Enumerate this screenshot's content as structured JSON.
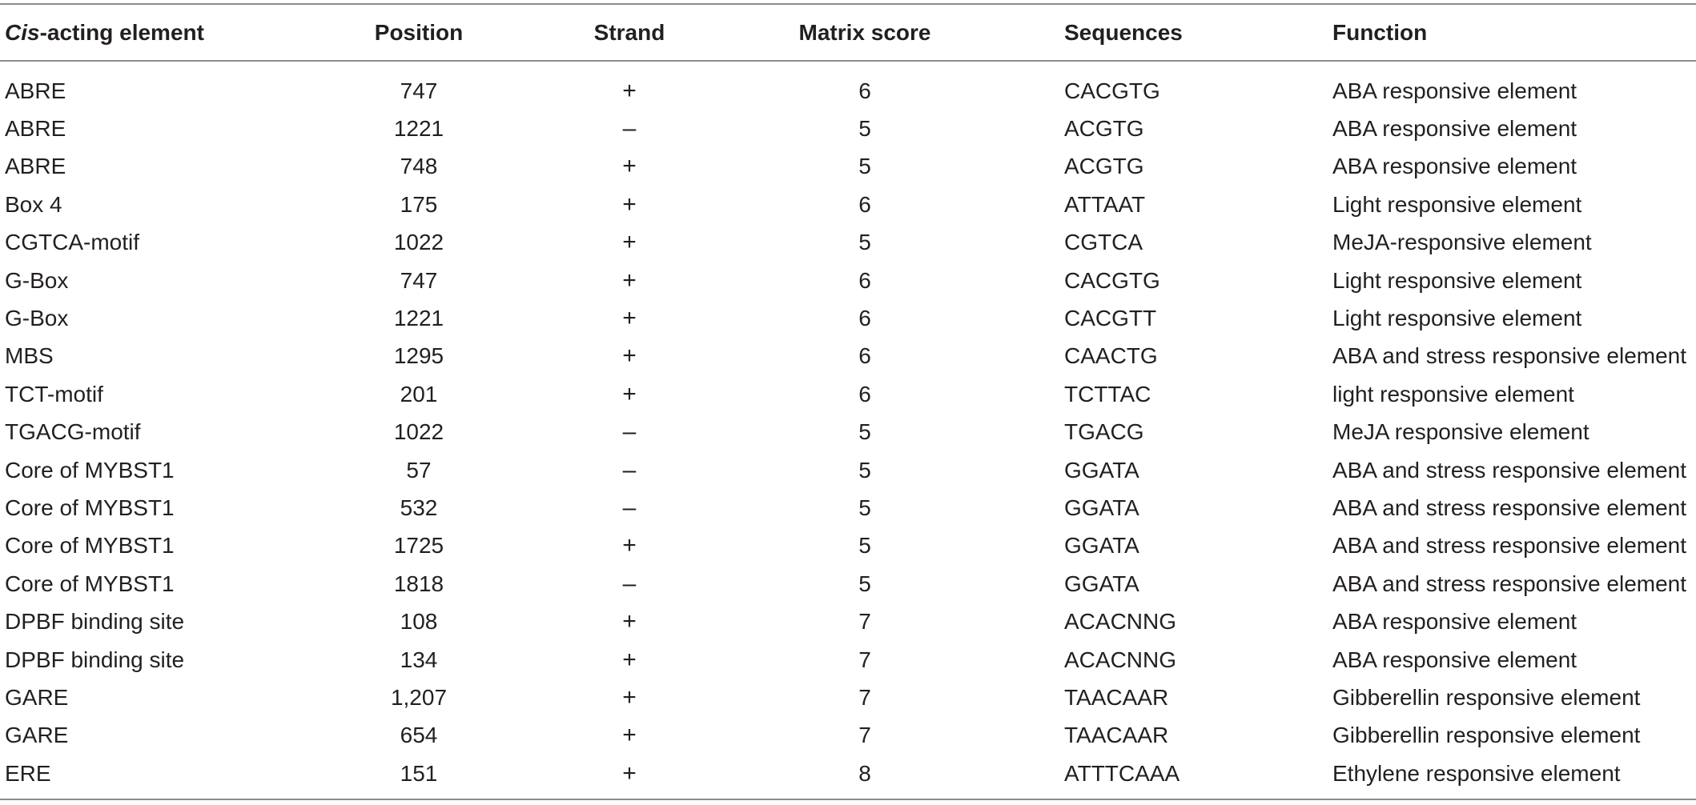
{
  "table": {
    "headers": {
      "element_italic": "Cis",
      "element_rest": "-acting element",
      "position": "Position",
      "strand": "Strand",
      "matrix_score": "Matrix score",
      "sequences": "Sequences",
      "function": "Function"
    },
    "rows": [
      {
        "element": "ABRE",
        "position": "747",
        "strand": "+",
        "score": "6",
        "sequence": "CACGTG",
        "function": "ABA responsive element"
      },
      {
        "element": "ABRE",
        "position": "1221",
        "strand": "–",
        "score": "5",
        "sequence": "ACGTG",
        "function": "ABA responsive element"
      },
      {
        "element": "ABRE",
        "position": "748",
        "strand": "+",
        "score": "5",
        "sequence": "ACGTG",
        "function": "ABA responsive element"
      },
      {
        "element": "Box 4",
        "position": "175",
        "strand": "+",
        "score": "6",
        "sequence": "ATTAAT",
        "function": "Light responsive element"
      },
      {
        "element": "CGTCA-motif",
        "position": "1022",
        "strand": "+",
        "score": "5",
        "sequence": "CGTCA",
        "function": "MeJA-responsive element"
      },
      {
        "element": "G-Box",
        "position": "747",
        "strand": "+",
        "score": "6",
        "sequence": "CACGTG",
        "function": "Light responsive element"
      },
      {
        "element": "G-Box",
        "position": "1221",
        "strand": "+",
        "score": "6",
        "sequence": "CACGTT",
        "function": "Light responsive element"
      },
      {
        "element": "MBS",
        "position": "1295",
        "strand": "+",
        "score": "6",
        "sequence": "CAACTG",
        "function": "ABA and stress responsive element"
      },
      {
        "element": "TCT-motif",
        "position": "201",
        "strand": "+",
        "score": "6",
        "sequence": "TCTTAC",
        "function": "light responsive element"
      },
      {
        "element": "TGACG-motif",
        "position": "1022",
        "strand": "–",
        "score": "5",
        "sequence": "TGACG",
        "function": "MeJA responsive element"
      },
      {
        "element": "Core of MYBST1",
        "position": "57",
        "strand": "–",
        "score": "5",
        "sequence": "GGATA",
        "function": "ABA and stress responsive element"
      },
      {
        "element": "Core of MYBST1",
        "position": "532",
        "strand": "–",
        "score": "5",
        "sequence": "GGATA",
        "function": "ABA and stress responsive element"
      },
      {
        "element": "Core of MYBST1",
        "position": "1725",
        "strand": "+",
        "score": "5",
        "sequence": "GGATA",
        "function": "ABA and stress responsive element"
      },
      {
        "element": "Core of MYBST1",
        "position": "1818",
        "strand": "–",
        "score": "5",
        "sequence": "GGATA",
        "function": "ABA and stress responsive element"
      },
      {
        "element": "DPBF binding site",
        "position": "108",
        "strand": "+",
        "score": "7",
        "sequence": "ACACNNG",
        "function": "ABA responsive element"
      },
      {
        "element": "DPBF binding site",
        "position": "134",
        "strand": "+",
        "score": "7",
        "sequence": "ACACNNG",
        "function": "ABA responsive element"
      },
      {
        "element": "GARE",
        "position": "1,207",
        "strand": "+",
        "score": "7",
        "sequence": "TAACAAR",
        "function": "Gibberellin responsive element"
      },
      {
        "element": "GARE",
        "position": "654",
        "strand": "+",
        "score": "7",
        "sequence": "TAACAAR",
        "function": "Gibberellin responsive element"
      },
      {
        "element": "ERE",
        "position": "151",
        "strand": "+",
        "score": "8",
        "sequence": "ATTTCAAA",
        "function": "Ethylene responsive element"
      }
    ]
  }
}
